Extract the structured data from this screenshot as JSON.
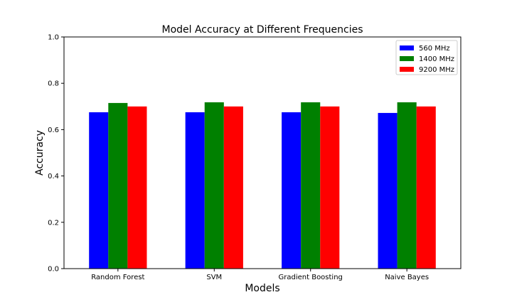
{
  "chart_data": {
    "type": "bar",
    "title": "Model Accuracy at Different Frequencies",
    "xlabel": "Models",
    "ylabel": "Accuracy",
    "ylim": [
      0,
      1.0
    ],
    "yticks": [
      "0.0",
      "0.2",
      "0.4",
      "0.6",
      "0.8",
      "1.0"
    ],
    "categories": [
      "Random Forest",
      "SVM",
      "Gradient Boosting",
      "Naive Bayes"
    ],
    "series": [
      {
        "name": "560 MHz",
        "color": "#0000ff",
        "values": [
          0.675,
          0.675,
          0.675,
          0.672
        ]
      },
      {
        "name": "1400 MHz",
        "color": "#008000",
        "values": [
          0.715,
          0.718,
          0.718,
          0.718
        ]
      },
      {
        "name": "9200 MHz",
        "color": "#ff0000",
        "values": [
          0.7,
          0.7,
          0.7,
          0.7
        ]
      }
    ],
    "grid": false,
    "legend_position": "top-right"
  }
}
